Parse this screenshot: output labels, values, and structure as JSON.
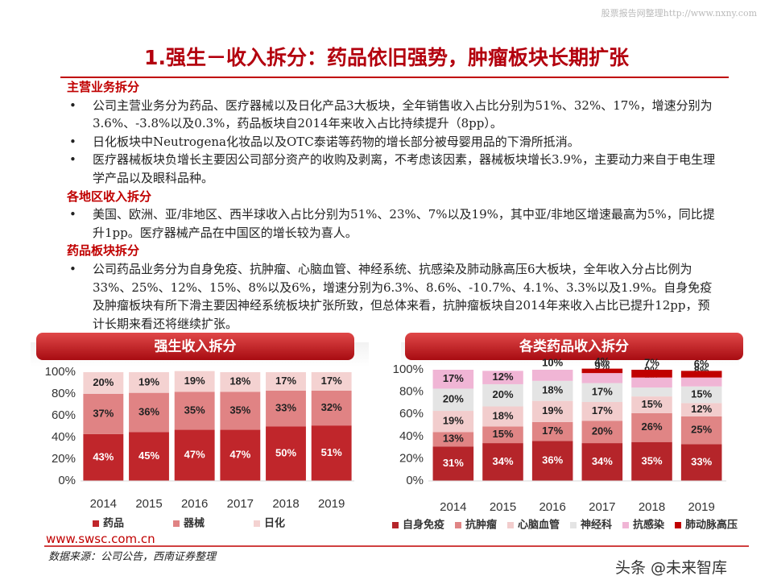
{
  "watermark": "股票报告网整理http://www.nxny.com",
  "title": "1.强生－收入拆分：药品依旧强势，肿瘤板块长期扩张",
  "sections": [
    {
      "heading": "主营业务拆分",
      "bullets": [
        "公司主营业务分为药品、医疗器械以及日化产品3大板块，全年销售收入占比分别为51%、32%、17%，增速分别为3.6%、-3.8%以及0.3%，药品板块自2014年来收入占比持续提升（8pp）。",
        "日化板块中Neutrogena化妆品以及OTC泰诺等药物的增长部分被母婴用品的下滑所抵消。",
        "医疗器械板块负增长主要因公司部分资产的收购及剥离，不考虑该因素，器械板块增长3.9%，主要动力来自于电生理学产品以及眼科品种。"
      ]
    },
    {
      "heading": "各地区收入拆分",
      "bullets": [
        "美国、欧洲、亚/非地区、西半球收入占比分别为51%、23%、7%以及19%，其中亚/非地区增速最高为5%，同比提升1pp。医疗器械产品在中国区的增长较为喜人。"
      ]
    },
    {
      "heading": "药品板块拆分",
      "bullets": [
        "公司药品业务分为自身免疫、抗肿瘤、心脑血管、神经系统、抗感染及肺动脉高压6大板块，全年收入分占比例为33%、25%、12%、15%、8%以及6%，增速分别为6.3%、8.6%、-10.7%、4.1%、3.3%以及1.9%。自身免疫及肿瘤板块有所下滑主要因神经系统板块扩张所致，但总体来看，抗肿瘤板块自2014年来收入占比已提升12pp，预计长期来看还将继续扩张。"
      ]
    }
  ],
  "chart_data": [
    {
      "type": "stacked-bar",
      "title": "强生收入拆分",
      "categories": [
        "2014",
        "2015",
        "2016",
        "2017",
        "2018",
        "2019"
      ],
      "ylim": [
        0,
        100
      ],
      "yticks": [
        {
          "value": 0,
          "label": "0%"
        },
        {
          "value": 20,
          "label": "20%"
        },
        {
          "value": 40,
          "label": "40%"
        },
        {
          "value": 60,
          "label": "60%"
        },
        {
          "value": 80,
          "label": "80%"
        },
        {
          "value": 100,
          "label": "100%"
        }
      ],
      "series": [
        {
          "name": "药品",
          "color": "#c0262b",
          "values": [
            43,
            45,
            47,
            47,
            50,
            51
          ],
          "value_labels": [
            "43%",
            "45%",
            "47%",
            "47%",
            "50%",
            "51%"
          ]
        },
        {
          "name": "器械",
          "color": "#e08384",
          "values": [
            37,
            36,
            35,
            35,
            33,
            32
          ],
          "value_labels": [
            "37%",
            "36%",
            "35%",
            "35%",
            "33%",
            "32%"
          ]
        },
        {
          "name": "日化",
          "color": "#f4d2d1",
          "values": [
            20,
            19,
            19,
            18,
            17,
            17
          ],
          "value_labels": [
            "20%",
            "19%",
            "19%",
            "18%",
            "17%",
            "17%"
          ]
        }
      ]
    },
    {
      "type": "stacked-bar",
      "title": "各类药品收入拆分",
      "categories": [
        "2014",
        "2015",
        "2016",
        "2017",
        "2018",
        "2019"
      ],
      "ylim": [
        0,
        100
      ],
      "yticks": [
        {
          "value": 0,
          "label": "0%"
        },
        {
          "value": 20,
          "label": "20%"
        },
        {
          "value": 40,
          "label": "40%"
        },
        {
          "value": 60,
          "label": "60%"
        },
        {
          "value": 80,
          "label": "80%"
        },
        {
          "value": 100,
          "label": "100%"
        }
      ],
      "series": [
        {
          "name": "自身免疫",
          "color": "#b5252a",
          "values": [
            31,
            34,
            36,
            34,
            35,
            33
          ],
          "value_labels": [
            "31%",
            "34%",
            "36%",
            "34%",
            "35%",
            "33%"
          ]
        },
        {
          "name": "抗肿瘤",
          "color": "#e08585",
          "values": [
            13,
            15,
            17,
            20,
            26,
            25
          ],
          "value_labels": [
            "13%",
            "15%",
            "17%",
            "20%",
            "26%",
            "25%"
          ]
        },
        {
          "name": "心脑血管",
          "color": "#f2cdcd",
          "values": [
            19,
            18,
            19,
            17,
            15,
            12
          ],
          "value_labels": [
            "19%",
            "18%",
            "19%",
            "17%",
            "15%",
            "12%"
          ]
        },
        {
          "name": "神经科",
          "color": "#e4e4e4",
          "values": [
            20,
            20,
            18,
            17,
            8,
            15
          ],
          "value_labels": [
            "20%",
            "20%",
            "18%",
            "17%",
            "8%",
            "15%"
          ]
        },
        {
          "name": "抗感染",
          "color": "#f0b5d5",
          "values": [
            17,
            12,
            10,
            9,
            9,
            8
          ],
          "value_labels": [
            "17%",
            "12%",
            "10%",
            "9%",
            "9%",
            "8%"
          ]
        },
        {
          "name": "肺动脉高压",
          "color": "#c00000",
          "values": [
            null,
            null,
            null,
            4,
            7,
            6
          ],
          "value_labels": [
            null,
            null,
            null,
            "4%",
            "7%",
            "6%"
          ]
        }
      ]
    }
  ],
  "footer": {
    "website": "www.swsc.com.cn",
    "source": "数据来源：公司公告，西南证券整理",
    "credit": "头条 @未来智库"
  }
}
